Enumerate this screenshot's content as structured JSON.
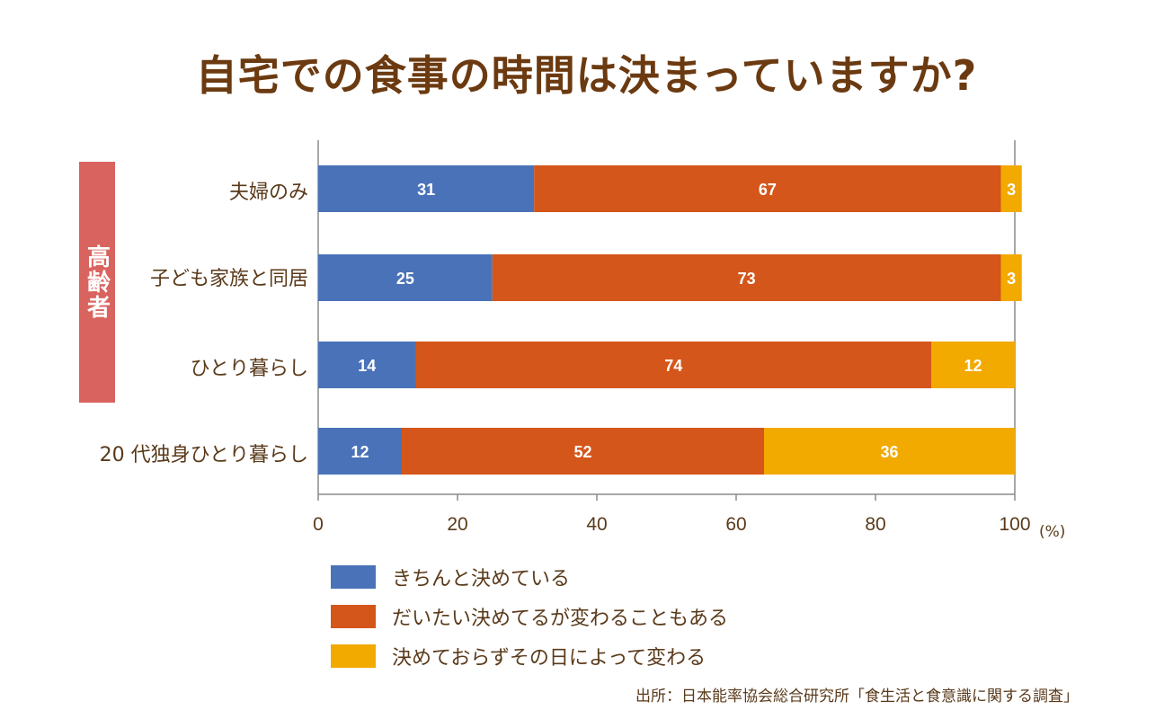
{
  "title": "自宅での食事の時間は決まっていますか?",
  "group_label": "高齢者",
  "unit": "(%)",
  "source": "出所：日本能率協会総合研究所「食生活と食意識に関する調査」",
  "chart_data": {
    "type": "bar",
    "orientation": "horizontal",
    "stacked": true,
    "title": "自宅での食事の時間は決まっていますか?",
    "categories": [
      "夫婦のみ",
      "子ども家族と同居",
      "ひとり暮らし",
      "20 代独身ひとり暮らし"
    ],
    "series": [
      {
        "name": "きちんと決めている",
        "color": "#4a72b8",
        "values": [
          31,
          25,
          14,
          12
        ]
      },
      {
        "name": "だいたい決めてるが変わることもある",
        "color": "#d4561a",
        "values": [
          67,
          73,
          74,
          52
        ]
      },
      {
        "name": "決めておらずその日によって変わる",
        "color": "#f2a900",
        "values": [
          3,
          3,
          12,
          36
        ]
      }
    ],
    "xlim": [
      0,
      100
    ],
    "xticks": [
      0,
      20,
      40,
      60,
      80,
      100
    ],
    "xlabel": "(%)",
    "legend_position": "bottom",
    "grid": false
  }
}
